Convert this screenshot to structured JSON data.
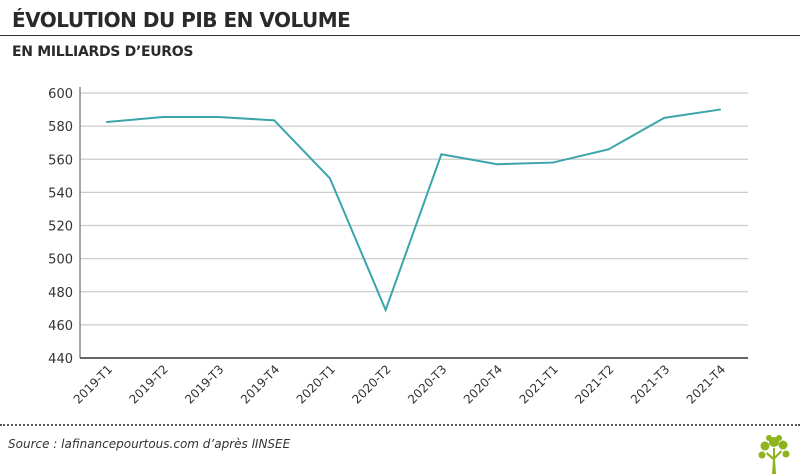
{
  "header": {
    "title": "ÉVOLUTION DU PIB EN VOLUME",
    "subtitle": "EN MILLIARDS D’EUROS"
  },
  "footer": {
    "source": "Source : lafinancepourtous.com d’après lINSEE",
    "logo": "tree-logo"
  },
  "colors": {
    "line": "#3aa5ab",
    "grid": "#cccccc",
    "axis": "#888888",
    "logo": "#8db31e"
  },
  "chart_data": {
    "type": "line",
    "title": "ÉVOLUTION DU PIB EN VOLUME",
    "subtitle": "EN MILLIARDS D’EUROS",
    "xlabel": "",
    "ylabel": "",
    "ylim": [
      440,
      600
    ],
    "yticks": [
      440,
      460,
      480,
      500,
      520,
      540,
      560,
      580,
      600
    ],
    "grid": true,
    "categories": [
      "2019-T1",
      "2019-T2",
      "2019-T3",
      "2019-T4",
      "2020-T1",
      "2020-T2",
      "2020-T3",
      "2020-T4",
      "2021-T1",
      "2021-T2",
      "2021-T3",
      "2021-T4"
    ],
    "series": [
      {
        "name": "PIB en volume",
        "values": [
          582.5,
          585.5,
          585.5,
          583.5,
          548.5,
          469,
          563,
          557,
          558,
          566,
          585,
          590
        ]
      }
    ]
  }
}
